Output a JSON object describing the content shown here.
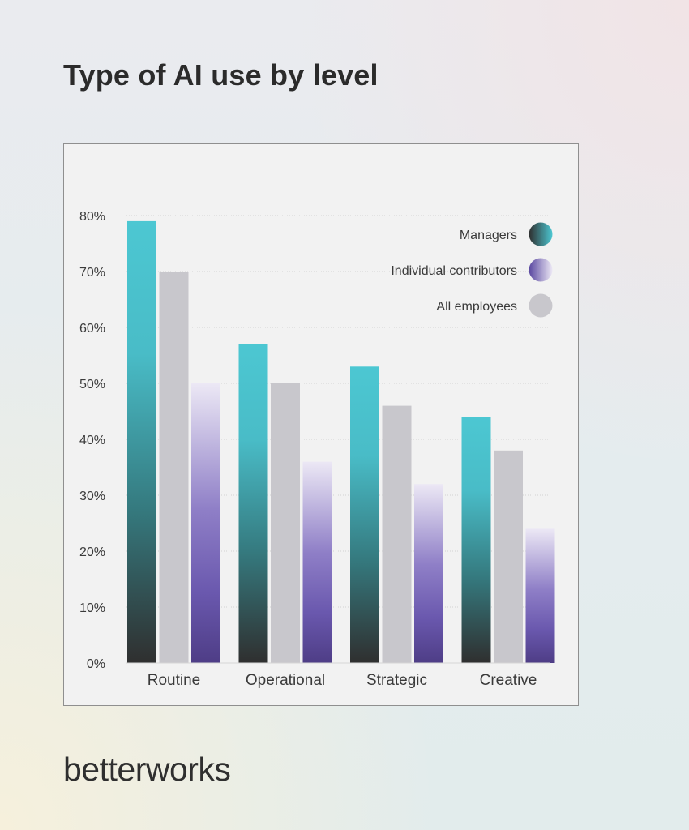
{
  "title": "Type of AI use by level",
  "brand": "betterworks",
  "chart_data": {
    "type": "bar",
    "categories": [
      "Routine",
      "Operational",
      "Strategic",
      "Creative"
    ],
    "series": [
      {
        "name": "Managers",
        "values": [
          79,
          57,
          53,
          44
        ]
      },
      {
        "name": "All employees",
        "values": [
          70,
          50,
          46,
          38
        ]
      },
      {
        "name": "Individual contributors",
        "values": [
          50,
          36,
          32,
          24
        ]
      }
    ],
    "legend_order": [
      "Managers",
      "Individual contributors",
      "All employees"
    ],
    "ylim": [
      0,
      80
    ],
    "yticks": [
      "0%",
      "10%",
      "20%",
      "30%",
      "40%",
      "50%",
      "60%",
      "70%",
      "80%"
    ],
    "grid": true,
    "legend_position": "top-right",
    "colors": {
      "Managers": [
        "#4cc7d2",
        "#2f2f2f"
      ],
      "All employees": [
        "#c8c7cc",
        "#c8c7cc"
      ],
      "Individual contributors": [
        "#e9e5f3",
        "#6a58ae",
        "#4e3d86"
      ]
    }
  }
}
